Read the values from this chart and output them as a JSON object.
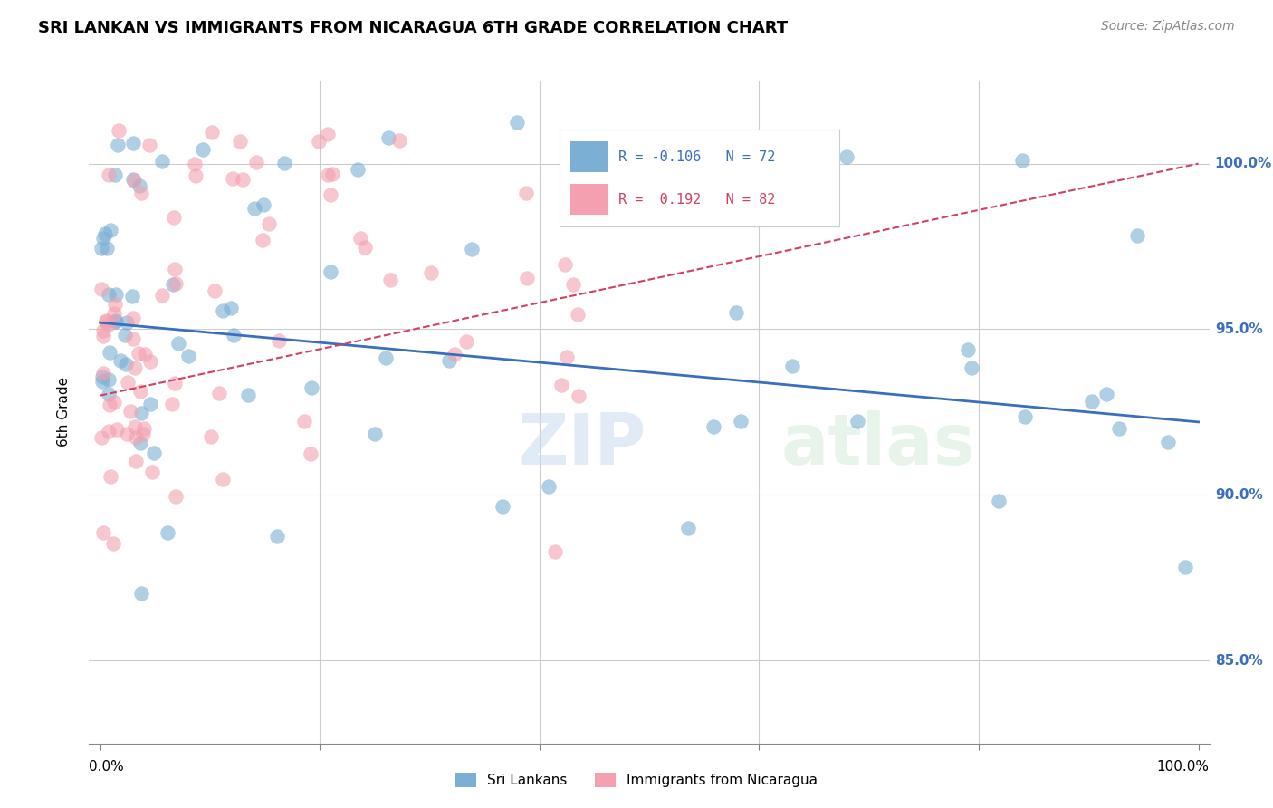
{
  "title": "SRI LANKAN VS IMMIGRANTS FROM NICARAGUA 6TH GRADE CORRELATION CHART",
  "source": "Source: ZipAtlas.com",
  "ylabel": "6th Grade",
  "legend_r_blue": "-0.106",
  "legend_n_blue": "72",
  "legend_r_pink": "0.192",
  "legend_n_pink": "82",
  "blue_color": "#7BAFD4",
  "pink_color": "#F4A0B0",
  "blue_line_color": "#3A6EBF",
  "pink_line_color": "#D44060",
  "watermark_zip": "ZIP",
  "watermark_atlas": "atlas",
  "background_color": "#ffffff",
  "grid_color": "#cccccc",
  "yticks": [
    85.0,
    90.0,
    95.0,
    100.0
  ],
  "slope_blue": -0.03,
  "intercept_blue": 95.2,
  "slope_pink": 0.07,
  "intercept_pink": 93.0
}
